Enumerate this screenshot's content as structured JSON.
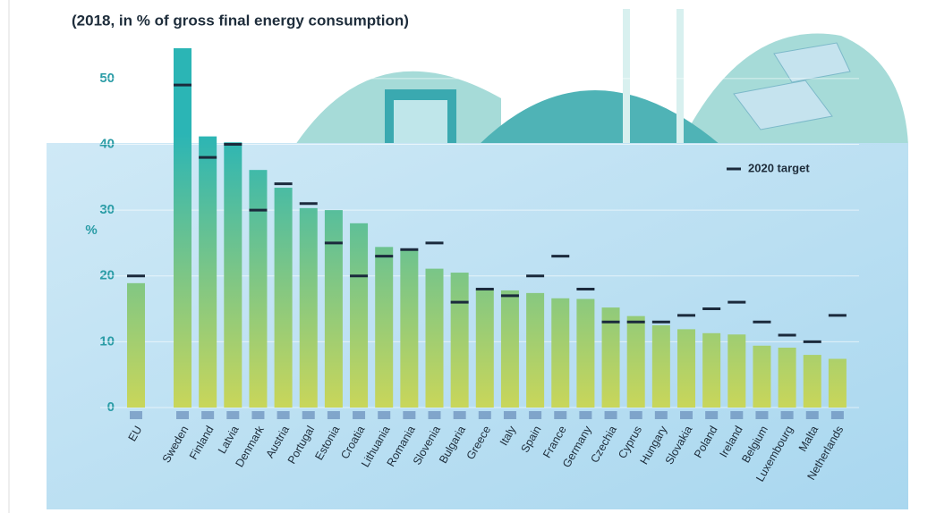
{
  "chart_data": {
    "type": "bar",
    "title": "(2018, in % of gross final energy consumption)",
    "y_label": "%",
    "categories": [
      "EU",
      "Sweden",
      "Finland",
      "Latvia",
      "Denmark",
      "Austria",
      "Portugal",
      "Estonia",
      "Croatia",
      "Lithuania",
      "Romania",
      "Slovenia",
      "Bulgaria",
      "Greece",
      "Italy",
      "Spain",
      "France",
      "Germany",
      "Czechia",
      "Cyprus",
      "Hungary",
      "Slovakia",
      "Poland",
      "Ireland",
      "Belgium",
      "Luxembourg",
      "Malta",
      "Netherlands"
    ],
    "series": [
      {
        "color": "#2bb5b5",
        "color_bottom": "#c9d65a",
        "values": [
          18.9,
          54.6,
          41.2,
          40.3,
          36.1,
          33.4,
          30.3,
          30.0,
          28.0,
          24.4,
          23.9,
          21.1,
          20.5,
          18.0,
          17.8,
          17.4,
          16.6,
          16.5,
          15.2,
          13.9,
          12.5,
          11.9,
          11.3,
          11.1,
          9.4,
          9.1,
          8.0,
          7.4
        ]
      },
      {
        "name": "2020 target",
        "color": "#1b2a3c",
        "values": [
          20,
          49,
          38,
          40,
          30,
          34,
          31,
          25,
          20,
          23,
          24,
          25,
          16,
          18,
          17,
          20,
          23,
          18,
          13,
          13,
          13,
          14,
          15,
          16,
          13,
          11,
          10,
          14
        ]
      }
    ],
    "ylim": [
      0,
      55
    ],
    "yticks": [
      0,
      10,
      20,
      30,
      40,
      50
    ],
    "grid": true
  }
}
